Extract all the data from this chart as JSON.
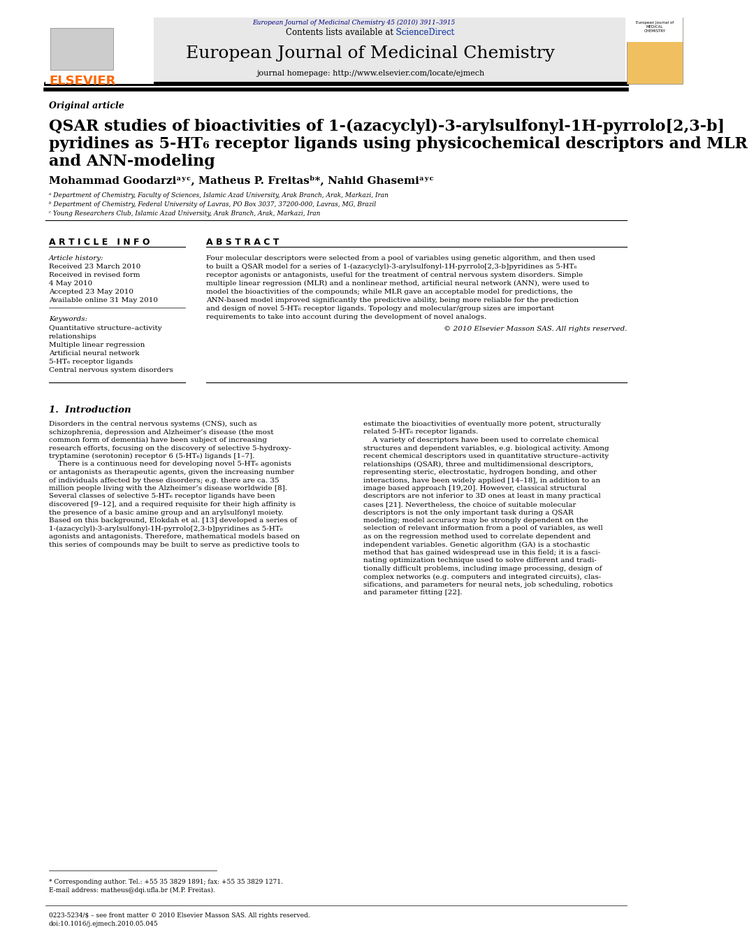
{
  "background_color": "#ffffff",
  "top_journal_line": "European Journal of Medicinal Chemistry 45 (2010) 3911–3915",
  "top_journal_color": "#000080",
  "header_bg": "#d3d3d3",
  "header_contents": "Contents lists available at ScienceDirect",
  "header_sciencedirect_color": "#4169e1",
  "journal_title": "European Journal of Medicinal Chemistry",
  "journal_homepage": "journal homepage: http://www.elsevier.com/locate/ejmech",
  "section_label": "Original article",
  "article_title_line1": "QSAR studies of bioactivities of 1-(azacyclyl)-3-arylsulfonyl-1H-pyrrolo[2,3-b]",
  "article_title_line2": "pyridines as 5-HT₆ receptor ligands using physicochemical descriptors and MLR",
  "article_title_line3": "and ANN-modeling",
  "authors": "Mohammad Goodarziᵃʸᶜ, Matheus P. Freitasᵇ*, Nahid Ghasemiᵃʸᶜ",
  "affil_a": "ᵃ Department of Chemistry, Faculty of Sciences, Islamic Azad University, Arak Branch, Arak, Markazi, Iran",
  "affil_b": "ᵇ Department of Chemistry, Federal University of Lavras, PO Box 3037, 37200-000, Lavras, MG, Brazil",
  "affil_c": "ᶜ Young Researchers Club, Islamic Azad University, Arak Branch, Arak, Markazi, Iran",
  "article_info_header": "A R T I C L E   I N F O",
  "abstract_header": "A B S T R A C T",
  "article_history_label": "Article history:",
  "received1": "Received 23 March 2010",
  "received2": "Received in revised form",
  "date1": "4 May 2010",
  "accepted": "Accepted 23 May 2010",
  "available": "Available online 31 May 2010",
  "keywords_label": "Keywords:",
  "keyword1": "Quantitative structure–activity",
  "keyword2": "relationships",
  "keyword3": "Multiple linear regression",
  "keyword4": "Artificial neural network",
  "keyword5": "5-HT₆ receptor ligands",
  "keyword6": "Central nervous system disorders",
  "abstract_text": "Four molecular descriptors were selected from a pool of variables using genetic algorithm, and then used\nto built a QSAR model for a series of 1-(azacyclyl)-3-arylsulfonyl-1H-pyrrolo[2,3-b]pyridines as 5-HT₆\nreceptor agonists or antagonists, useful for the treatment of central nervous system disorders. Simple\nmultiple linear regression (MLR) and a nonlinear method, artificial neural network (ANN), were used to\nmodel the bioactivities of the compounds; while MLR gave an acceptable model for predictions, the\nANN-based model improved significantly the predictive ability, being more reliable for the prediction\nand design of novel 5-HT₆ receptor ligands. Topology and molecular/group sizes are important\nrequirements to take into account during the development of novel analogs.",
  "copyright": "© 2010 Elsevier Masson SAS. All rights reserved.",
  "intro_header": "1.  Introduction",
  "intro_col1": "Disorders in the central nervous systems (CNS), such as\nschizophrenia, depression and Alzheimer’s disease (the most\ncommon form of dementia) have been subject of increasing\nresearch efforts, focusing on the discovery of selective 5-hydroxy-\ntryptamine (serotonin) receptor 6 (5-HT₆) ligands [1–7].\n    There is a continuous need for developing novel 5-HT₆ agonists\nor antagonists as therapeutic agents, given the increasing number\nof individuals affected by these disorders; e.g. there are ca. 35\nmillion people living with the Alzheimer’s disease worldwide [8].\nSeveral classes of selective 5-HT₆ receptor ligands have been\ndiscovered [9–12], and a required requisite for their high affinity is\nthe presence of a basic amine group and an arylsulfonyl moiety.\nBased on this background, Elokdah et al. [13] developed a series of\n1-(azacyclyl)-3-arylsulfonyl-1H-pyrrolo[2,3-b]pyridines as 5-HT₆\nagonists and antagonists. Therefore, mathematical models based on\nthis series of compounds may be built to serve as predictive tools to",
  "intro_col2": "estimate the bioactivities of eventually more potent, structurally\nrelated 5-HT₆ receptor ligands.\n    A variety of descriptors have been used to correlate chemical\nstructures and dependent variables, e.g. biological activity. Among\nrecent chemical descriptors used in quantitative structure–activity\nrelationships (QSAR), three and multidimensional descriptors,\nrepresenting steric, electrostatic, hydrogen bonding, and other\ninteractions, have been widely applied [14–18], in addition to an\nimage based approach [19,20]. However, classical structural\ndescriptors are not inferior to 3D ones at least in many practical\ncases [21]. Nevertheless, the choice of suitable molecular\ndescriptors is not the only important task during a QSAR\nmodeling; model accuracy may be strongly dependent on the\nselection of relevant information from a pool of variables, as well\nas on the regression method used to correlate dependent and\nindependent variables. Genetic algorithm (GA) is a stochastic\nmethod that has gained widespread use in this field; it is a fasci-\nnating optimization technique used to solve different and tradi-\ntionally difficult problems, including image processing, design of\ncomplex networks (e.g. computers and integrated circuits), clas-\nsifications, and parameters for neural nets, job scheduling, robotics\nand parameter fitting [22].",
  "footnote_corresponding": "* Corresponding author. Tel.: +55 35 3829 1891; fax: +55 35 3829 1271.",
  "footnote_email": "E-mail address: matheus@dqi.ufla.br (M.P. Freitas).",
  "footer_issn": "0223-5234/$ – see front matter © 2010 Elsevier Masson SAS. All rights reserved.",
  "footer_doi": "doi:10.1016/j.ejmech.2010.05.045",
  "elsevier_color": "#ff6600",
  "text_color": "#000000",
  "body_font_size": 7.5
}
